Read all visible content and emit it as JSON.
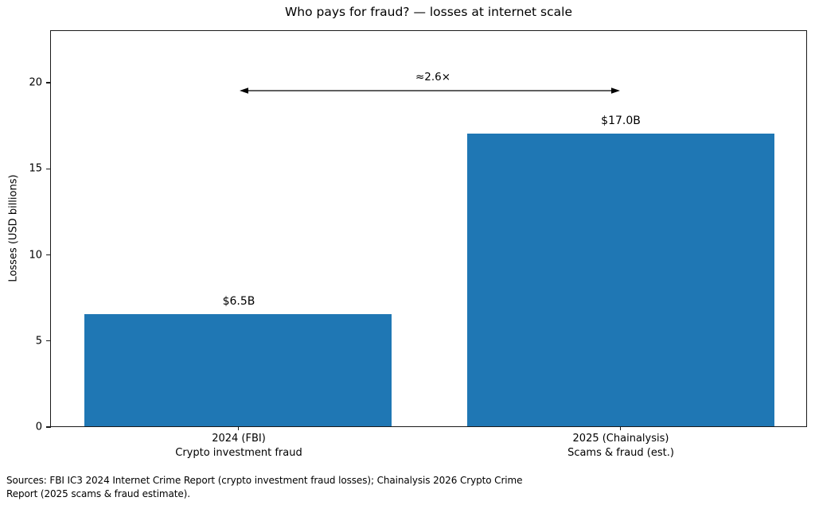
{
  "figure": {
    "title": "Who pays for fraud? — losses at internet scale",
    "footer": {
      "line1": "Sources: FBI IC3 2024 Internet Crime Report (crypto investment fraud losses); Chainalysis 2026 Crypto Crime",
      "line2": "Report (2025 scams & fraud estimate)."
    }
  },
  "chart_data": {
    "type": "bar",
    "title": "Who pays for fraud? — losses at internet scale",
    "xlabel": "",
    "ylabel": "Losses (USD billions)",
    "ylim": [
      0,
      23
    ],
    "yticks": [
      0,
      5,
      10,
      15,
      20
    ],
    "grid": false,
    "legend": null,
    "bar_color": "#1f77b4",
    "categories": [
      {
        "line1": "2024 (FBI)",
        "line2": "Crypto investment fraud"
      },
      {
        "line1": "2025 (Chainalysis)",
        "line2": "Scams & fraud (est.)"
      }
    ],
    "values": [
      6.5,
      17.0
    ],
    "bar_labels": [
      "$6.5B",
      "$17.0B"
    ],
    "annotation": {
      "text": "≈2.6×"
    }
  }
}
